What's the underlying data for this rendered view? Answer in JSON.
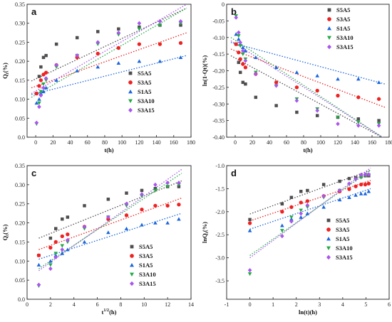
{
  "series_styles": [
    {
      "name": "S5A5",
      "color": "#4d4d4d",
      "marker": "square"
    },
    {
      "name": "S3A5",
      "color": "#ee2222",
      "marker": "circle"
    },
    {
      "name": "S1A5",
      "color": "#1a66dd",
      "marker": "triangle-up"
    },
    {
      "name": "S3A10",
      "color": "#22aa44",
      "marker": "triangle-down"
    },
    {
      "name": "S3A15",
      "color": "#aa55ee",
      "marker": "diamond"
    }
  ],
  "chart_data": [
    {
      "panel_label": "a",
      "type": "scatter",
      "xlabel": "t(h)",
      "ylabel": "Qt(%)",
      "ylabel_sub": "t",
      "ylabel_base": "Q",
      "ylabel_unit": "(%)",
      "xlim": [
        -10,
        180
      ],
      "ylim": [
        0,
        0.35
      ],
      "xticks": [
        0,
        20,
        40,
        60,
        80,
        100,
        120,
        140,
        160,
        180
      ],
      "yticks": [
        0.0,
        0.05,
        0.1,
        0.15,
        0.2,
        0.25,
        0.3,
        0.35
      ],
      "ytick_labels": [
        "0.0",
        "0.05",
        "0.10",
        "0.15",
        "0.20",
        "0.25",
        "0.30",
        "0.35"
      ],
      "legend_position": "center-right",
      "x": [
        1,
        4,
        6,
        9,
        12,
        24,
        48,
        72,
        96,
        120,
        144,
        168
      ],
      "series": [
        {
          "name": "S5A5",
          "values": [
            0.115,
            0.16,
            0.185,
            0.21,
            0.215,
            0.245,
            0.262,
            0.278,
            0.285,
            0.29,
            0.295,
            0.295
          ]
        },
        {
          "name": "S3A5",
          "values": [
            0.115,
            0.135,
            0.15,
            0.165,
            0.17,
            0.19,
            0.21,
            0.22,
            0.235,
            0.245,
            0.245,
            0.248
          ]
        },
        {
          "name": "S1A5",
          "values": [
            0.09,
            0.1,
            0.115,
            0.12,
            0.13,
            0.15,
            0.175,
            0.185,
            0.195,
            0.2,
            0.2,
            0.21
          ]
        },
        {
          "name": "S3A10",
          "values": [
            0.035,
            0.09,
            0.12,
            0.14,
            0.15,
            0.185,
            0.215,
            0.245,
            0.27,
            0.285,
            0.295,
            0.3
          ]
        },
        {
          "name": "S3A15",
          "values": [
            0.038,
            0.08,
            0.11,
            0.13,
            0.155,
            0.19,
            0.215,
            0.25,
            0.275,
            0.3,
            0.305,
            0.305
          ]
        }
      ],
      "fits": [
        {
          "name": "S5A5",
          "from": [
            -5,
            0.148
          ],
          "to": [
            175,
            0.34
          ]
        },
        {
          "name": "S3A5",
          "from": [
            -5,
            0.13
          ],
          "to": [
            175,
            0.275
          ]
        },
        {
          "name": "S1A5",
          "from": [
            -5,
            0.112
          ],
          "to": [
            175,
            0.215
          ]
        },
        {
          "name": "S3A10",
          "from": [
            -5,
            0.105
          ],
          "to": [
            175,
            0.34
          ]
        },
        {
          "name": "S3A15",
          "from": [
            -5,
            0.115
          ],
          "to": [
            175,
            0.35
          ]
        }
      ]
    },
    {
      "panel_label": "b",
      "type": "scatter",
      "xlabel": "t(h)",
      "ylabel": "ln(1-Qt)(%)",
      "xlim": [
        -10,
        180
      ],
      "ylim": [
        -0.4,
        0
      ],
      "xticks": [
        0,
        20,
        40,
        60,
        80,
        100,
        120,
        140,
        160,
        180
      ],
      "yticks": [
        0,
        -0.05,
        -0.1,
        -0.15,
        -0.2,
        -0.25,
        -0.3,
        -0.35,
        -0.4
      ],
      "ytick_labels": [
        "0",
        "-0.05",
        "-0.10",
        "-0.15",
        "-0.20",
        "-0.25",
        "-0.30",
        "-0.35",
        "-0.40"
      ],
      "legend_position": "top-right",
      "x": [
        1,
        4,
        6,
        9,
        12,
        24,
        48,
        72,
        96,
        120,
        144,
        168
      ],
      "series": [
        {
          "name": "S5A5",
          "values": [
            -0.12,
            -0.175,
            -0.205,
            -0.235,
            -0.24,
            -0.28,
            -0.305,
            -0.325,
            -0.335,
            -0.34,
            -0.345,
            -0.35
          ]
        },
        {
          "name": "S3A5",
          "values": [
            -0.12,
            -0.145,
            -0.165,
            -0.18,
            -0.19,
            -0.21,
            -0.235,
            -0.25,
            -0.26,
            -0.275,
            -0.28,
            -0.285
          ]
        },
        {
          "name": "S1A5",
          "values": [
            -0.09,
            -0.105,
            -0.12,
            -0.13,
            -0.14,
            -0.16,
            -0.19,
            -0.205,
            -0.215,
            -0.225,
            -0.225,
            -0.235
          ]
        },
        {
          "name": "S3A10",
          "values": [
            -0.035,
            -0.095,
            -0.125,
            -0.15,
            -0.165,
            -0.205,
            -0.245,
            -0.285,
            -0.315,
            -0.34,
            -0.355,
            -0.36
          ]
        },
        {
          "name": "S3A15",
          "values": [
            -0.04,
            -0.085,
            -0.115,
            -0.14,
            -0.17,
            -0.21,
            -0.245,
            -0.29,
            -0.32,
            -0.36,
            -0.365,
            -0.365
          ]
        }
      ],
      "fits": [
        {
          "name": "S5A5",
          "from": [
            -5,
            -0.155
          ],
          "to": [
            175,
            -0.405
          ]
        },
        {
          "name": "S3A5",
          "from": [
            -5,
            -0.135
          ],
          "to": [
            175,
            -0.31
          ]
        },
        {
          "name": "S1A5",
          "from": [
            -5,
            -0.115
          ],
          "to": [
            175,
            -0.24
          ]
        },
        {
          "name": "S3A10",
          "from": [
            -5,
            -0.1
          ],
          "to": [
            175,
            -0.405
          ]
        },
        {
          "name": "S3A15",
          "from": [
            -5,
            -0.11
          ],
          "to": [
            175,
            -0.405
          ]
        }
      ]
    },
    {
      "panel_label": "c",
      "type": "scatter",
      "xlabel": "t1/2(h)",
      "xlabel_base": "t",
      "xlabel_sup": "1/2",
      "xlabel_unit": "(h)",
      "ylabel": "Qt(%)",
      "ylabel_base": "Q",
      "ylabel_sub": "t",
      "ylabel_unit": "(%)",
      "xlim": [
        0,
        14
      ],
      "ylim": [
        0,
        0.35
      ],
      "xticks": [
        0,
        2,
        4,
        6,
        8,
        10,
        12,
        14
      ],
      "yticks": [
        0.0,
        0.05,
        0.1,
        0.15,
        0.2,
        0.25,
        0.3,
        0.35
      ],
      "ytick_labels": [
        "0.0",
        "0.05",
        "0.10",
        "0.15",
        "0.20",
        "0.25",
        "0.30",
        "0.35"
      ],
      "legend_position": "bottom-right",
      "x": [
        1,
        2,
        2.45,
        3,
        3.46,
        4.9,
        6.93,
        8.49,
        9.8,
        10.95,
        12,
        12.96
      ],
      "series": [
        {
          "name": "S5A5",
          "values": [
            0.115,
            0.16,
            0.185,
            0.21,
            0.215,
            0.245,
            0.262,
            0.278,
            0.285,
            0.29,
            0.295,
            0.295
          ]
        },
        {
          "name": "S3A5",
          "values": [
            0.115,
            0.135,
            0.15,
            0.165,
            0.17,
            0.19,
            0.21,
            0.22,
            0.235,
            0.245,
            0.245,
            0.248
          ]
        },
        {
          "name": "S1A5",
          "values": [
            0.09,
            0.1,
            0.115,
            0.12,
            0.13,
            0.15,
            0.175,
            0.185,
            0.195,
            0.2,
            0.2,
            0.21
          ]
        },
        {
          "name": "S3A10",
          "values": [
            0.035,
            0.09,
            0.12,
            0.14,
            0.15,
            0.185,
            0.215,
            0.245,
            0.27,
            0.285,
            0.295,
            0.3
          ]
        },
        {
          "name": "S3A15",
          "values": [
            0.038,
            0.08,
            0.11,
            0.13,
            0.155,
            0.19,
            0.215,
            0.25,
            0.275,
            0.3,
            0.305,
            0.305
          ]
        }
      ],
      "fits": [
        {
          "name": "S5A5",
          "from": [
            1,
            0.16
          ],
          "to": [
            13.2,
            0.31
          ]
        },
        {
          "name": "S3A5",
          "from": [
            1,
            0.13
          ],
          "to": [
            13.2,
            0.265
          ]
        },
        {
          "name": "S1A5",
          "from": [
            1,
            0.105
          ],
          "to": [
            13.2,
            0.225
          ]
        },
        {
          "name": "S3A10",
          "from": [
            1,
            0.08
          ],
          "to": [
            13.2,
            0.33
          ]
        },
        {
          "name": "S3A15",
          "from": [
            1,
            0.075
          ],
          "to": [
            13.2,
            0.34
          ]
        }
      ]
    },
    {
      "panel_label": "d",
      "type": "scatter",
      "xlabel": "ln(t)(h)",
      "ylabel": "lnQt(%)",
      "ylabel_base": "lnQ",
      "ylabel_sub": "t",
      "ylabel_unit": "(%)",
      "xlim": [
        -1,
        6
      ],
      "ylim": [
        -3.9,
        -1
      ],
      "xticks": [
        -1,
        0,
        1,
        2,
        3,
        4,
        5,
        6
      ],
      "yticks": [
        -1.0,
        -1.5,
        -2.0,
        -2.5,
        -3.0,
        -3.5
      ],
      "ytick_labels": [
        "-1.0",
        "-1.5",
        "-2.0",
        "-2.5",
        "-3.0",
        "-3.5"
      ],
      "legend_position": "center-right",
      "x": [
        0,
        1.39,
        1.79,
        2.2,
        2.48,
        3.18,
        3.87,
        4.28,
        4.56,
        4.79,
        4.97,
        5.12
      ],
      "series": [
        {
          "name": "S5A5",
          "values": [
            -2.17,
            -1.83,
            -1.69,
            -1.56,
            -1.54,
            -1.41,
            -1.34,
            -1.28,
            -1.26,
            -1.24,
            -1.22,
            -1.22
          ]
        },
        {
          "name": "S3A5",
          "values": [
            -2.25,
            -2.0,
            -1.9,
            -1.8,
            -1.77,
            -1.66,
            -1.56,
            -1.51,
            -1.45,
            -1.41,
            -1.41,
            -1.39
          ]
        },
        {
          "name": "S1A5",
          "values": [
            -2.41,
            -2.3,
            -2.16,
            -2.12,
            -2.04,
            -1.9,
            -1.74,
            -1.69,
            -1.64,
            -1.61,
            -1.61,
            -1.56
          ]
        },
        {
          "name": "S3A10",
          "values": [
            -3.35,
            -2.41,
            -2.12,
            -1.97,
            -1.9,
            -1.69,
            -1.54,
            -1.41,
            -1.31,
            -1.26,
            -1.22,
            -1.2
          ]
        },
        {
          "name": "S3A15",
          "values": [
            -3.27,
            -2.53,
            -2.21,
            -2.04,
            -1.86,
            -1.66,
            -1.54,
            -1.39,
            -1.29,
            -1.2,
            -1.19,
            -1.19
          ]
        }
      ],
      "fits": [
        {
          "name": "S5A5",
          "from": [
            0,
            -2.05
          ],
          "to": [
            5.2,
            -1.1
          ]
        },
        {
          "name": "S3A5",
          "from": [
            0,
            -2.2
          ],
          "to": [
            5.2,
            -1.32
          ]
        },
        {
          "name": "S1A5",
          "from": [
            0,
            -2.38
          ],
          "to": [
            5.2,
            -1.5
          ]
        },
        {
          "name": "S3A10",
          "from": [
            0,
            -2.95
          ],
          "to": [
            5.2,
            -1.1
          ]
        },
        {
          "name": "S3A15",
          "from": [
            0,
            -3.0
          ],
          "to": [
            5.2,
            -1.05
          ]
        }
      ]
    }
  ]
}
